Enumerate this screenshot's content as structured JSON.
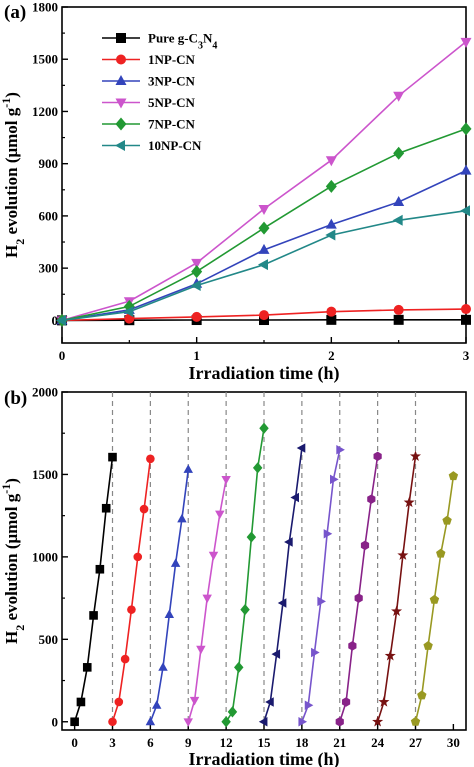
{
  "chart_data": [
    {
      "panel_label": "(a)",
      "type": "line",
      "xlabel": "Irradiation time (h)",
      "ylabel_main": "H",
      "ylabel_sub": "2",
      "ylabel_rest": " evolution (μmol g",
      "ylabel_sup": "-1",
      "ylabel_end": ")",
      "xlim": [
        0,
        3
      ],
      "ylim": [
        -130,
        1800
      ],
      "xticks": [
        0,
        1,
        2,
        3
      ],
      "yticks": [
        0,
        300,
        600,
        900,
        1200,
        1500,
        1800
      ],
      "x": [
        0,
        0.5,
        1,
        1.5,
        2,
        2.5,
        3
      ],
      "legend_position": "top-left",
      "series": [
        {
          "name_main": "Pure g-C",
          "name_sub1": "3",
          "name_mid": "N",
          "name_sub2": "4",
          "color": "#000000",
          "marker": "square",
          "values": [
            0,
            1,
            2,
            2,
            3,
            3,
            3
          ]
        },
        {
          "name": "1NP-CN",
          "color": "#ee2222",
          "marker": "circle",
          "values": [
            0,
            10,
            20,
            30,
            50,
            60,
            65
          ]
        },
        {
          "name": "3NP-CN",
          "color": "#3344bb",
          "marker": "triangle-up",
          "values": [
            0,
            60,
            210,
            405,
            550,
            680,
            860
          ]
        },
        {
          "name": "5NP-CN",
          "color": "#cc55cc",
          "marker": "triangle-down",
          "values": [
            0,
            110,
            330,
            640,
            920,
            1290,
            1600
          ]
        },
        {
          "name": "7NP-CN",
          "color": "#229933",
          "marker": "diamond",
          "values": [
            0,
            80,
            280,
            530,
            770,
            960,
            1100
          ]
        },
        {
          "name": "10NP-CN",
          "color": "#228888",
          "marker": "triangle-left",
          "values": [
            0,
            50,
            200,
            320,
            490,
            575,
            630
          ]
        }
      ]
    },
    {
      "panel_label": "(b)",
      "type": "line",
      "xlabel": "Irradiation time (h)",
      "ylabel_main": "H",
      "ylabel_sub": "2",
      "ylabel_rest": " evolution (μmol g",
      "ylabel_sup": "-1",
      "ylabel_end": ")",
      "xlim": [
        -1,
        31
      ],
      "ylim": [
        -50,
        2000
      ],
      "xticks": [
        0,
        3,
        6,
        9,
        12,
        15,
        18,
        21,
        24,
        27,
        30
      ],
      "yticks": [
        0,
        500,
        1000,
        1500,
        2000
      ],
      "cycle_boundaries": [
        3,
        6,
        9,
        12,
        15,
        18,
        21,
        24,
        27
      ],
      "cycle_offsets": [
        0,
        0.5,
        1,
        1.5,
        2,
        2.5,
        3
      ],
      "cycles": [
        {
          "start": 0,
          "color": "#000000",
          "marker": "square",
          "values": [
            0,
            120,
            330,
            645,
            925,
            1295,
            1605
          ]
        },
        {
          "start": 3,
          "color": "#ee2222",
          "marker": "circle",
          "values": [
            0,
            120,
            380,
            680,
            1000,
            1290,
            1595
          ]
        },
        {
          "start": 6,
          "color": "#3344bb",
          "marker": "triangle-up",
          "values": [
            0,
            100,
            330,
            650,
            960,
            1230,
            1530
          ]
        },
        {
          "start": 9,
          "color": "#cc55cc",
          "marker": "triangle-down",
          "values": [
            0,
            130,
            440,
            750,
            1010,
            1260,
            1470
          ]
        },
        {
          "start": 12,
          "color": "#229933",
          "marker": "diamond",
          "values": [
            0,
            60,
            330,
            680,
            1120,
            1540,
            1780
          ]
        },
        {
          "start": 15,
          "color": "#1a1a6e",
          "marker": "triangle-left",
          "values": [
            0,
            120,
            410,
            720,
            1090,
            1360,
            1660
          ]
        },
        {
          "start": 18,
          "color": "#7755cc",
          "marker": "triangle-right",
          "values": [
            0,
            100,
            420,
            730,
            1140,
            1470,
            1650
          ]
        },
        {
          "start": 21,
          "color": "#882288",
          "marker": "hexagon",
          "values": [
            0,
            120,
            460,
            750,
            1070,
            1350,
            1610
          ]
        },
        {
          "start": 24,
          "color": "#771111",
          "marker": "star",
          "values": [
            0,
            120,
            400,
            670,
            1010,
            1330,
            1610
          ]
        },
        {
          "start": 27,
          "color": "#999922",
          "marker": "pentagon",
          "values": [
            0,
            160,
            460,
            740,
            1020,
            1220,
            1490
          ]
        }
      ]
    }
  ]
}
